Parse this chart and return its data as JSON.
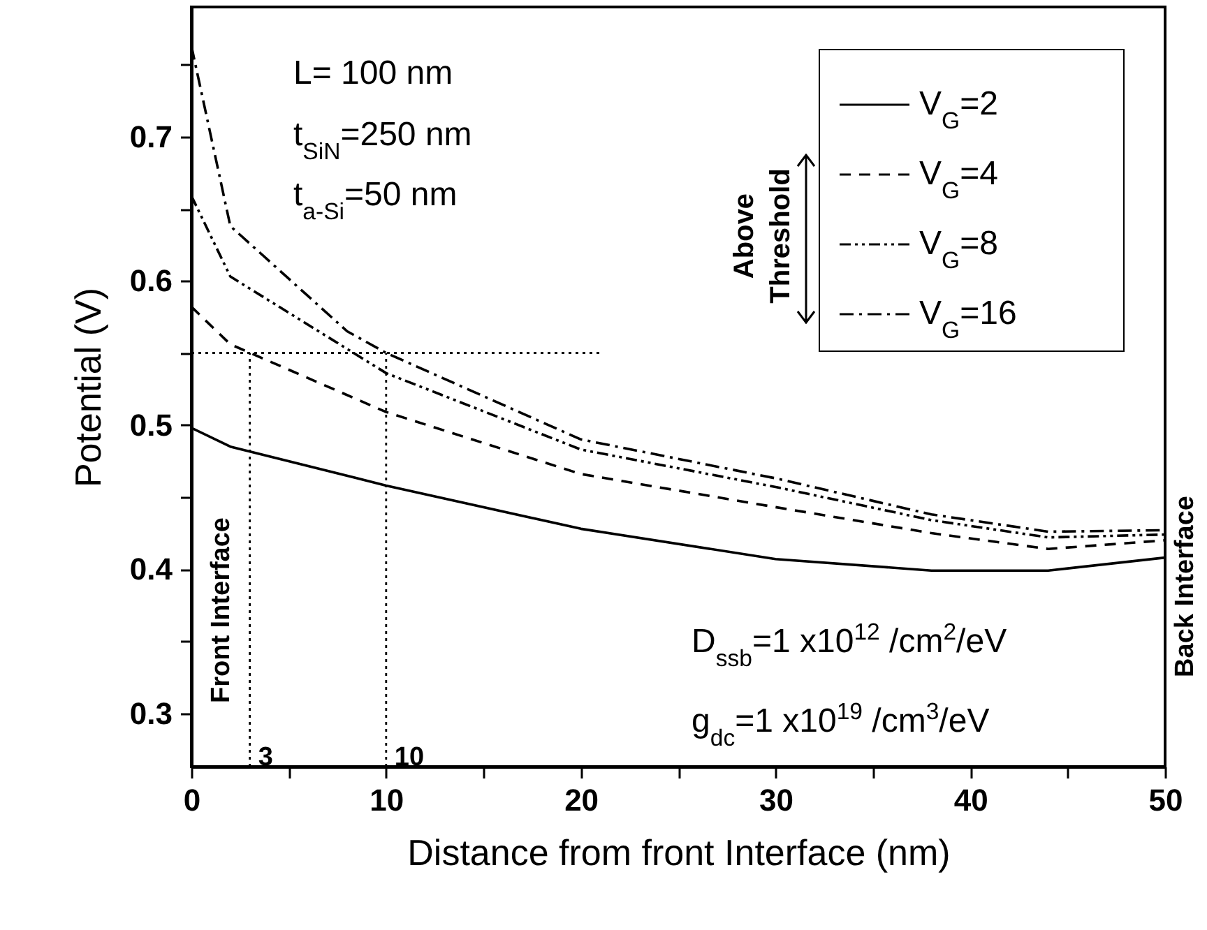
{
  "chart_data": {
    "type": "line",
    "xlabel": "Distance from front Interface (nm)",
    "ylabel": "Potential (V)",
    "xlim": [
      0,
      50
    ],
    "ylim": [
      0.263,
      0.79
    ],
    "xticks": [
      0,
      {
        "value": 5,
        "label": null
      },
      10,
      {
        "value": 15,
        "label": null
      },
      20,
      {
        "value": 25,
        "label": null
      },
      30,
      {
        "value": 35,
        "label": null
      },
      40,
      {
        "value": 45,
        "label": null
      },
      50
    ],
    "yticks": [
      {
        "value": 0.3,
        "label": "0.3"
      },
      {
        "value": 0.35,
        "label": null
      },
      {
        "value": 0.4,
        "label": "0.4"
      },
      {
        "value": 0.45,
        "label": null
      },
      {
        "value": 0.5,
        "label": "0.5"
      },
      {
        "value": 0.55,
        "label": null
      },
      {
        "value": 0.6,
        "label": "0.6"
      },
      {
        "value": 0.65,
        "label": null
      },
      {
        "value": 0.7,
        "label": "0.7"
      },
      {
        "value": 0.75,
        "label": null
      }
    ],
    "legend": "top right",
    "series": [
      {
        "name": "V$_{G}$=2",
        "color": "#000000",
        "line_style": "solid",
        "x": [
          0,
          2,
          10,
          20,
          30,
          38,
          44,
          50
        ],
        "values": [
          0.498,
          0.485,
          0.458,
          0.428,
          0.407,
          0.399,
          0.399,
          0.408
        ]
      },
      {
        "name": "V$_{G}$=4",
        "color": "#000000",
        "line_style": "dashed",
        "x": [
          0,
          2,
          10,
          20,
          30,
          38,
          44,
          50
        ],
        "values": [
          0.582,
          0.556,
          0.509,
          0.466,
          0.443,
          0.425,
          0.414,
          0.42
        ]
      },
      {
        "name": "V$_{G}$=8",
        "color": "#000000",
        "line_style": "dashdotdot",
        "x": [
          0,
          2,
          10,
          20,
          30,
          38,
          44,
          50
        ],
        "values": [
          0.659,
          0.603,
          0.536,
          0.483,
          0.457,
          0.434,
          0.422,
          0.424
        ]
      },
      {
        "name": "V$_{G}$=16",
        "color": "#000000",
        "line_style": "dashdot",
        "x": [
          0,
          2,
          8,
          10,
          20,
          30,
          38,
          44,
          50
        ],
        "values": [
          0.763,
          0.638,
          0.565,
          0.55,
          0.49,
          0.463,
          0.438,
          0.426,
          0.427
        ]
      },
      {
        "color": "#000000",
        "line_style": "dotted",
        "x": [
          0,
          21
        ],
        "values": [
          0.55,
          0.55
        ]
      },
      {
        "color": "#000000",
        "line_style": "dotted",
        "x": [
          3,
          3
        ],
        "values": [
          0.263,
          0.55
        ]
      },
      {
        "color": "#000000",
        "line_style": "dotted",
        "x": [
          10,
          10
        ],
        "values": [
          0.263,
          0.55
        ]
      }
    ],
    "annotations": [
      "L= 100 nm",
      "t$_{SiN}$=250 nm",
      "t$_{a-Si}$=50 nm",
      "D$_{ssb}$=1 x10$^{12}$ /cm$^{2}$/eV",
      "g$_{dc}$=1 x10$^{19}$ /cm$^{3}$/eV",
      "Front Interface",
      "Back Interface",
      "Above Threshold",
      {
        "text": "3",
        "x": 3,
        "y": 0.27
      },
      {
        "text": "10",
        "x": 10,
        "y": 0.27
      }
    ]
  }
}
